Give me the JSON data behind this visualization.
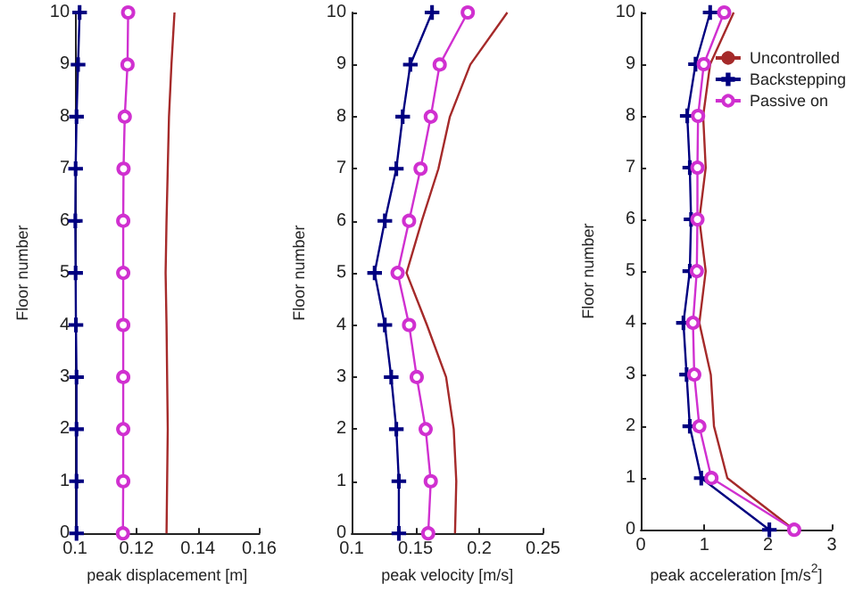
{
  "chart_data": [
    {
      "type": "line",
      "xlabel": "peak displacement [m]",
      "ylabel": "Floor number",
      "xlim": [
        0.1,
        0.16
      ],
      "xticks": [
        0.1,
        0.12,
        0.14,
        0.16
      ],
      "ylim": [
        0,
        10
      ],
      "yticks": [
        0,
        1,
        2,
        3,
        4,
        5,
        6,
        7,
        8,
        9,
        10
      ],
      "grid": false,
      "series": [
        {
          "color": "#a52a2a",
          "marker": "none",
          "x": [
            0.1298,
            0.13,
            0.1302,
            0.13,
            0.1298,
            0.1295,
            0.1298,
            0.1302,
            0.1306,
            0.1314,
            0.1324
          ],
          "values": [
            0,
            1,
            2,
            3,
            4,
            5,
            6,
            7,
            8,
            9,
            10
          ]
        },
        {
          "color": "#000080",
          "marker": "cross",
          "x": [
            0.1005,
            0.1005,
            0.1005,
            0.1005,
            0.1003,
            0.1002,
            0.1001,
            0.1002,
            0.1005,
            0.101,
            0.1015
          ],
          "values": [
            0,
            1,
            2,
            3,
            4,
            5,
            6,
            7,
            8,
            9,
            10
          ]
        },
        {
          "color": "#d030d0",
          "marker": "circle",
          "x": [
            0.1156,
            0.1157,
            0.1157,
            0.1157,
            0.1157,
            0.1157,
            0.1157,
            0.1158,
            0.1162,
            0.1171,
            0.1173
          ],
          "values": [
            0,
            1,
            2,
            3,
            4,
            5,
            6,
            7,
            8,
            9,
            10
          ]
        }
      ]
    },
    {
      "type": "line",
      "xlabel": "peak velocity [m/s]",
      "ylabel": "Floor number",
      "xlim": [
        0.1,
        0.25
      ],
      "xticks": [
        0.1,
        0.15,
        0.2,
        0.25
      ],
      "ylim": [
        0,
        10
      ],
      "yticks": [
        0,
        1,
        2,
        3,
        4,
        5,
        6,
        7,
        8,
        9,
        10
      ],
      "grid": false,
      "series": [
        {
          "color": "#a52a2a",
          "marker": "none",
          "x": [
            0.181,
            0.182,
            0.18,
            0.174,
            0.159,
            0.143,
            0.155,
            0.168,
            0.177,
            0.193,
            0.222
          ],
          "values": [
            0,
            1,
            2,
            3,
            4,
            5,
            6,
            7,
            8,
            9,
            10
          ]
        },
        {
          "color": "#000080",
          "marker": "cross",
          "x": [
            0.137,
            0.137,
            0.135,
            0.131,
            0.126,
            0.118,
            0.126,
            0.135,
            0.14,
            0.146,
            0.163
          ],
          "values": [
            0,
            1,
            2,
            3,
            4,
            5,
            6,
            7,
            8,
            9,
            10
          ]
        },
        {
          "color": "#d030d0",
          "marker": "circle",
          "x": [
            0.16,
            0.162,
            0.158,
            0.151,
            0.145,
            0.136,
            0.145,
            0.154,
            0.162,
            0.169,
            0.191
          ],
          "values": [
            0,
            1,
            2,
            3,
            4,
            5,
            6,
            7,
            8,
            9,
            10
          ]
        }
      ]
    },
    {
      "type": "line",
      "xlabel": "peak acceleration [m/s$^{2}$]",
      "ylabel": "Floor number",
      "xlim": [
        0,
        3
      ],
      "xticks": [
        0,
        1,
        2,
        3
      ],
      "ylim": [
        0,
        10
      ],
      "yticks": [
        0,
        1,
        2,
        3,
        4,
        5,
        6,
        7,
        8,
        9,
        10
      ],
      "grid": false,
      "legend": "top right",
      "series": [
        {
          "name": "Uncontrolled",
          "color": "#a52a2a",
          "marker": "none",
          "x": [
            2.41,
            1.36,
            1.15,
            1.1,
            0.92,
            1.02,
            0.92,
            1.02,
            0.98,
            1.09,
            1.46
          ],
          "values": [
            0,
            1,
            2,
            3,
            4,
            5,
            6,
            7,
            8,
            9,
            10
          ]
        },
        {
          "name": "Backstepping",
          "color": "#000080",
          "marker": "cross",
          "x": [
            2.02,
            0.95,
            0.77,
            0.72,
            0.67,
            0.77,
            0.79,
            0.77,
            0.73,
            0.86,
            1.09
          ],
          "values": [
            0,
            1,
            2,
            3,
            4,
            5,
            6,
            7,
            8,
            9,
            10
          ]
        },
        {
          "name": "Passive on",
          "color": "#d030d0",
          "marker": "circle",
          "x": [
            2.41,
            1.11,
            0.92,
            0.84,
            0.82,
            0.88,
            0.89,
            0.89,
            0.9,
            0.99,
            1.31
          ],
          "values": [
            0,
            1,
            2,
            3,
            4,
            5,
            6,
            7,
            8,
            9,
            10
          ]
        }
      ]
    }
  ]
}
